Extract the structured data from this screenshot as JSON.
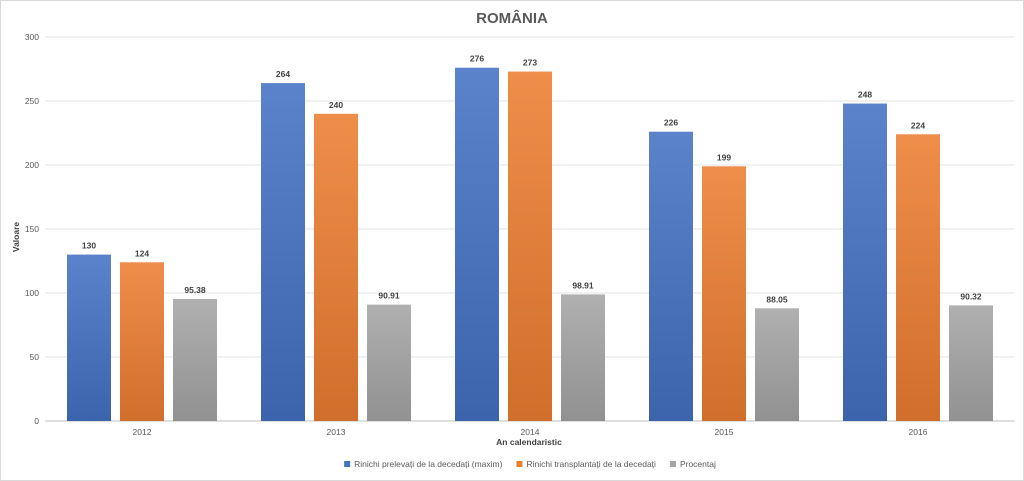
{
  "chart_data": {
    "type": "bar",
    "title": "ROMÂNIA",
    "xlabel": "An calendaristic",
    "ylabel": "Valoare",
    "ylim": [
      0,
      300
    ],
    "yticks": [
      0,
      50,
      100,
      150,
      200,
      250,
      300
    ],
    "grid": true,
    "legend_position": "bottom",
    "categories": [
      "2012",
      "2013",
      "2014",
      "2015",
      "2016"
    ],
    "series": [
      {
        "name": "Rinichi prelevați de la decedați (maxim)",
        "values": [
          130,
          264,
          276,
          226,
          248
        ],
        "value_labels": [
          "130",
          "264",
          "276",
          "226",
          "248"
        ],
        "color": "#4472c4"
      },
      {
        "name": "Rinichi transplantați de la decedați",
        "values": [
          124,
          240,
          273,
          199,
          224
        ],
        "value_labels": [
          "124",
          "240",
          "273",
          "199",
          "224"
        ],
        "color": "#ed7d31"
      },
      {
        "name": "Procentaj",
        "values": [
          95.38,
          90.91,
          98.91,
          88.05,
          90.32
        ],
        "value_labels": [
          "95.38",
          "90.91",
          "98.91",
          "88.05",
          "90.32"
        ],
        "color": "#a5a5a5"
      }
    ]
  }
}
